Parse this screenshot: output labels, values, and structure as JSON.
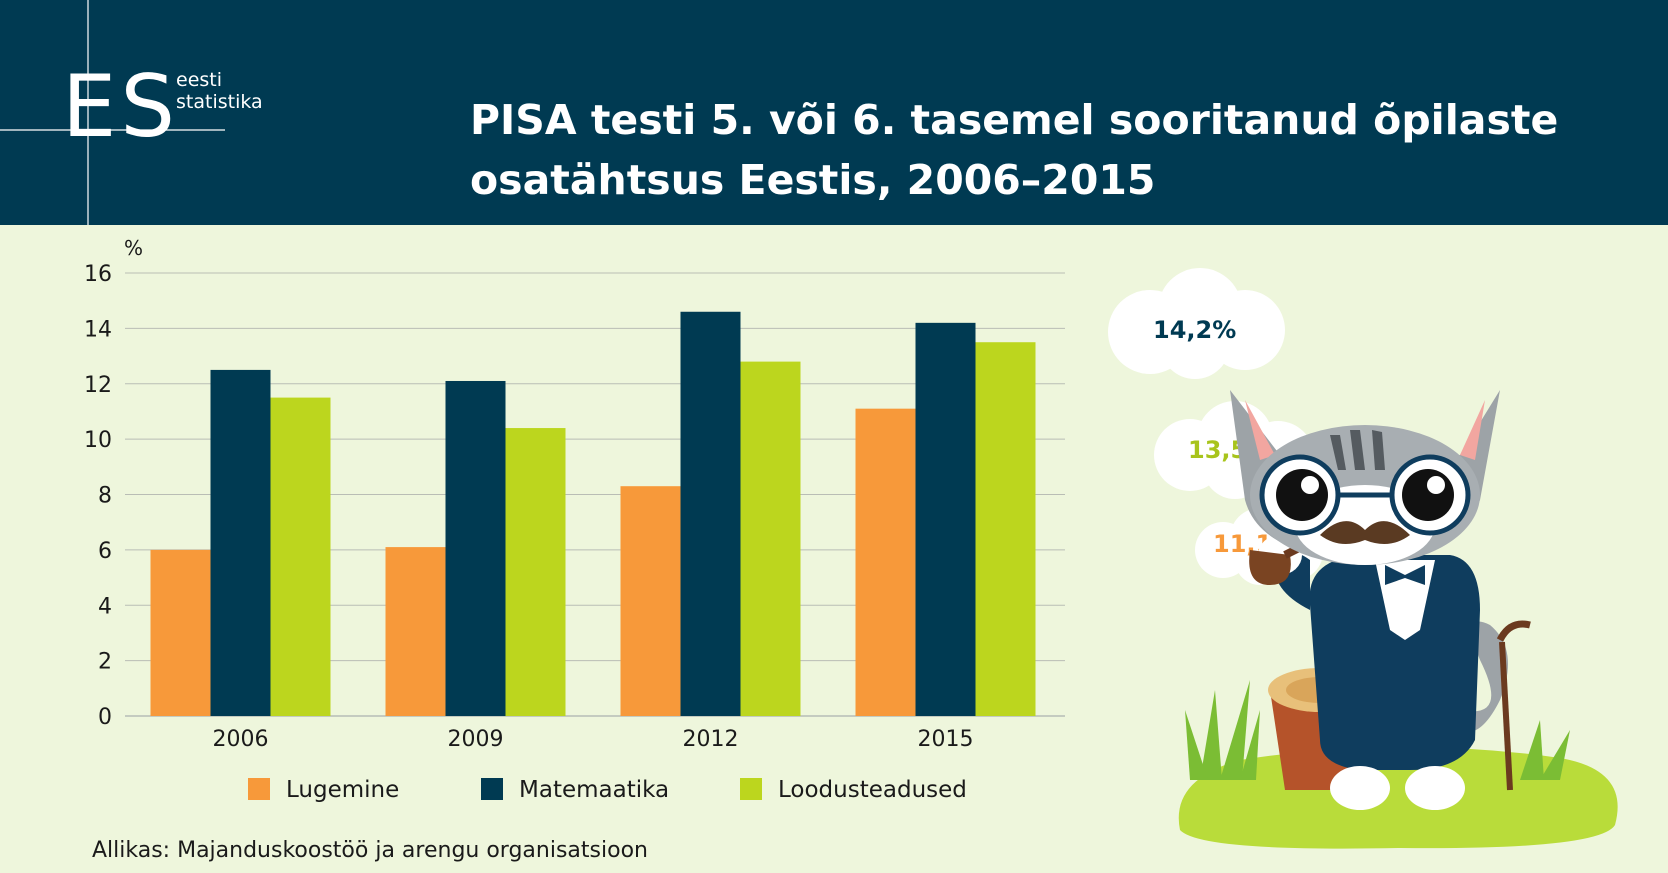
{
  "logo": {
    "mark": "ES",
    "line1": "eesti",
    "line2": "statistika"
  },
  "title_line1": "PISA testi 5. või 6. tasemel sooritanud õpilaste",
  "title_line2": "osatähtsus Eestis, 2006–2015",
  "source": "Allikas: Majanduskoostöö ja arengu organisatsioon",
  "bubbles": [
    {
      "text": "14,2%",
      "color": "#003a52"
    },
    {
      "text": "13,5%",
      "color": "#a8c41c"
    },
    {
      "text": "11,1%",
      "color": "#f7993a"
    }
  ],
  "chart_data": {
    "type": "bar",
    "categories": [
      "2006",
      "2009",
      "2012",
      "2015"
    ],
    "series": [
      {
        "name": "Lugemine",
        "color": "#f7993a",
        "values": [
          6.0,
          6.1,
          8.3,
          11.1
        ]
      },
      {
        "name": "Matemaatika",
        "color": "#003a52",
        "values": [
          12.5,
          12.1,
          14.6,
          14.2
        ]
      },
      {
        "name": "Loodusteadused",
        "color": "#bcd61e",
        "values": [
          11.5,
          10.4,
          12.8,
          13.5
        ]
      }
    ],
    "ylabel": "%",
    "ylim": [
      0,
      16
    ],
    "yticks": [
      0,
      2,
      4,
      6,
      8,
      10,
      12,
      14,
      16
    ],
    "grid": true,
    "legend": "bottom"
  }
}
